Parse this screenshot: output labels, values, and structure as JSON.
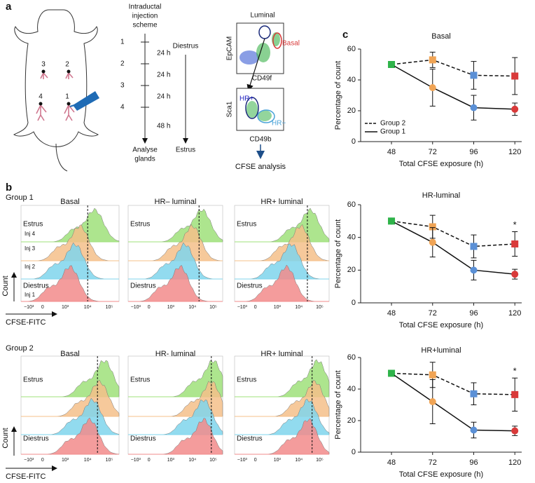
{
  "panel_labels": [
    "a",
    "b",
    "c"
  ],
  "scheme": {
    "title_lines": [
      "Intraductal",
      "injection",
      "scheme"
    ],
    "steps": [
      "1",
      "2",
      "3",
      "4"
    ],
    "intervals": [
      "24 h",
      "24 h",
      "24 h",
      "48 h"
    ],
    "end_lines": [
      "Analyse",
      "glands"
    ],
    "cycle": [
      "Diestrus",
      "Estrus"
    ]
  },
  "mouse": {
    "glands": [
      "3",
      "2",
      "4",
      "1"
    ]
  },
  "flow": {
    "plot1": {
      "y_label": "EpCAM",
      "x_label": "CD49f",
      "gates": [
        "Luminal",
        "Basal"
      ]
    },
    "plot2": {
      "y_label": "Sca1",
      "x_label": "CD49b",
      "gates": [
        "HR+",
        "HR−"
      ]
    },
    "output": "CFSE analysis"
  },
  "histograms": {
    "y_label": "Count",
    "x_label": "CFSE-FITC",
    "x_ticks": [
      "−10³",
      "0",
      "10³",
      "10⁴",
      "10⁵"
    ],
    "groups": [
      {
        "name": "Group 1",
        "titles": [
          "Basal",
          "HR– luminal",
          "HR+ luminal"
        ],
        "stage_labels": [
          "Estrus",
          "Diestrus"
        ],
        "injection_labels": [
          "Inj 4",
          "Inj 3",
          "Inj 2",
          "Inj 1"
        ]
      },
      {
        "name": "Group 2",
        "titles": [
          "Basal",
          "HR- luminal",
          "HR+ luminal"
        ],
        "stage_labels": [
          "Estrus",
          "Diestrus"
        ]
      }
    ]
  },
  "chart_data": [
    {
      "type": "line",
      "title": "Basal",
      "y_label": "Percentage of count",
      "x_label": "Total CFSE exposure (h)",
      "x": [
        48,
        72,
        96,
        120
      ],
      "xlim": [
        30,
        124
      ],
      "xticks": [
        48,
        72,
        96,
        120
      ],
      "ylim": [
        0,
        60
      ],
      "yticks": [
        0,
        20,
        40,
        60
      ],
      "point_colors": [
        "#2fb34a",
        "#f0a455",
        "#5b90d6",
        "#d93a3a"
      ],
      "legend": "lower left",
      "series": [
        {
          "name": "Group 2",
          "color": "#111111",
          "dashed": true,
          "marker": "square",
          "values": [
            50,
            53,
            43,
            42.5
          ],
          "errors": [
            0,
            5,
            9,
            12
          ]
        },
        {
          "name": "Group 1",
          "color": "#111111",
          "dashed": false,
          "marker": "circle",
          "values": [
            50,
            35,
            22,
            21
          ],
          "errors": [
            0,
            12,
            8,
            4
          ]
        }
      ]
    },
    {
      "type": "line",
      "title": "HR-luminal",
      "y_label": "Percentage of count",
      "x_label": "Total CFSE exposure (h)",
      "x": [
        48,
        72,
        96,
        120
      ],
      "xlim": [
        30,
        124
      ],
      "xticks": [
        48,
        72,
        96,
        120
      ],
      "ylim": [
        0,
        60
      ],
      "yticks": [
        0,
        20,
        40,
        60
      ],
      "point_colors": [
        "#2fb34a",
        "#f0a455",
        "#5b90d6",
        "#d93a3a"
      ],
      "annotations": [
        {
          "x": 120,
          "text": "*"
        }
      ],
      "series": [
        {
          "color": "#111111",
          "dashed": true,
          "marker": "square",
          "values": [
            50,
            46.5,
            34.5,
            36
          ],
          "errors": [
            0,
            7,
            7,
            7.5
          ]
        },
        {
          "color": "#111111",
          "dashed": false,
          "marker": "circle",
          "values": [
            50,
            37,
            20,
            17.5
          ],
          "errors": [
            0,
            9,
            6,
            3
          ]
        }
      ]
    },
    {
      "type": "line",
      "title": "HR+luminal",
      "y_label": "Percentage of count",
      "x_label": "Total CFSE exposure (h)",
      "x": [
        48,
        72,
        96,
        120
      ],
      "xlim": [
        30,
        124
      ],
      "xticks": [
        48,
        72,
        96,
        120
      ],
      "ylim": [
        0,
        60
      ],
      "yticks": [
        0,
        20,
        40,
        60
      ],
      "point_colors": [
        "#2fb34a",
        "#f0a455",
        "#5b90d6",
        "#d93a3a"
      ],
      "annotations": [
        {
          "x": 120,
          "text": "*"
        }
      ],
      "series": [
        {
          "color": "#111111",
          "dashed": true,
          "marker": "square",
          "values": [
            50,
            49,
            37,
            36.5
          ],
          "errors": [
            0,
            8,
            7,
            10.5
          ]
        },
        {
          "color": "#111111",
          "dashed": false,
          "marker": "circle",
          "values": [
            50,
            32,
            14,
            13.5
          ],
          "errors": [
            0,
            14,
            5,
            3
          ]
        }
      ]
    }
  ]
}
